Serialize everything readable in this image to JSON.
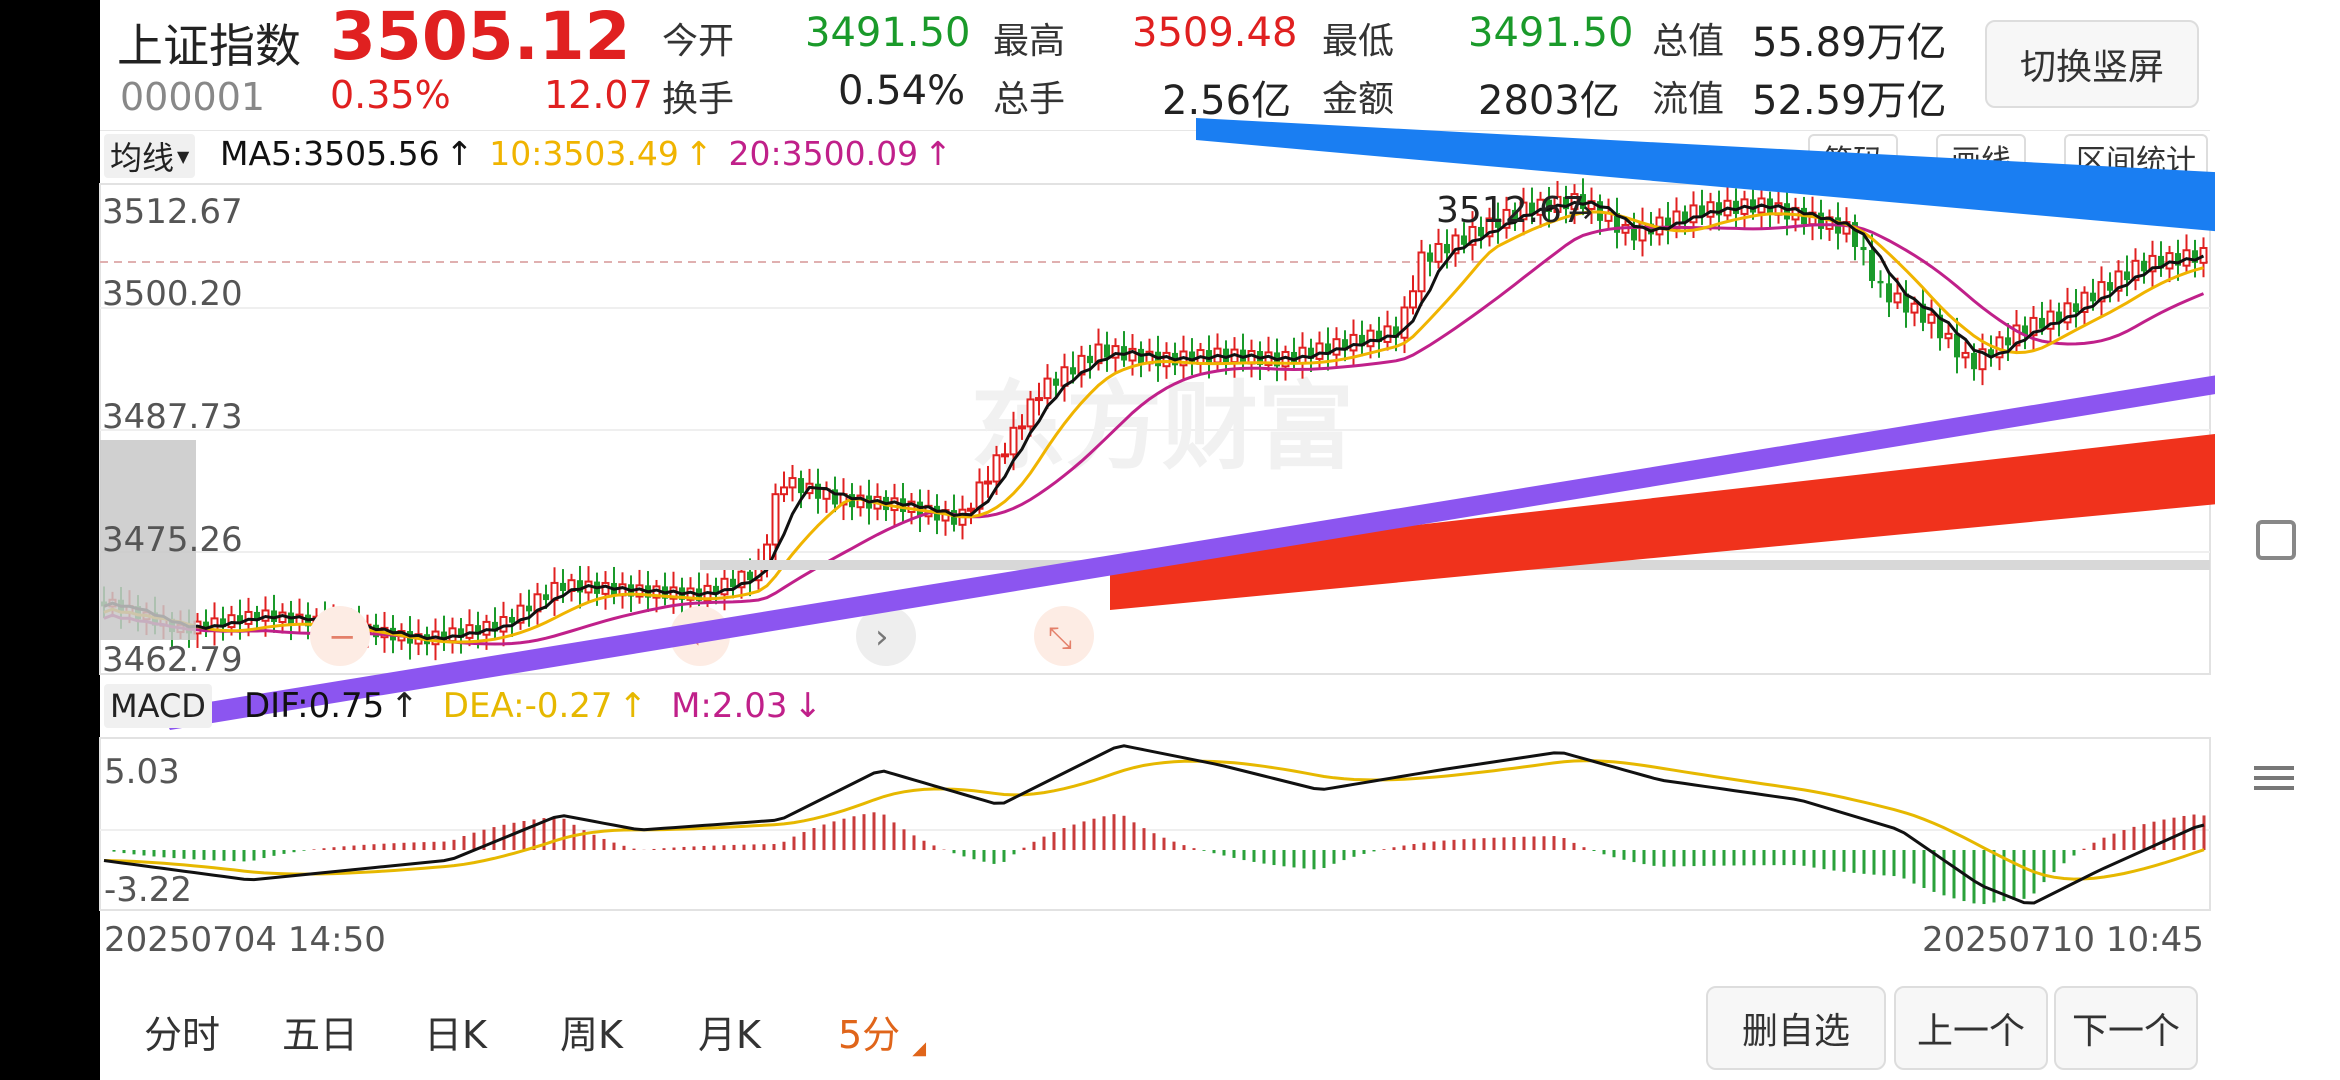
{
  "header": {
    "name": "上证指数",
    "price": "3505.12",
    "code": "000001",
    "change_pct": "0.35%",
    "change_abs": "12.07",
    "stats": [
      {
        "label": "今开",
        "value": "3491.50",
        "color": "green"
      },
      {
        "label": "最高",
        "value": "3509.48",
        "color": "red"
      },
      {
        "label": "最低",
        "value": "3491.50",
        "color": "green"
      },
      {
        "label": "总值",
        "value": "55.89万亿",
        "color": "dark"
      },
      {
        "label": "换手",
        "value": "0.54%",
        "color": "dark"
      },
      {
        "label": "总手",
        "value": "2.56亿",
        "color": "dark"
      },
      {
        "label": "金额",
        "value": "2803亿",
        "color": "dark"
      },
      {
        "label": "流值",
        "value": "52.59万亿",
        "color": "dark"
      }
    ],
    "switch_label": "切换竖屏"
  },
  "ma_bar": {
    "selector": "均线",
    "ma5": "MA5:3505.56",
    "ma10": "10:3503.49",
    "ma20": "20:3500.09",
    "buttons": [
      "筹码",
      "画线",
      "区间统计"
    ]
  },
  "price_axis": [
    "3512.67",
    "3500.20",
    "3487.73",
    "3475.26",
    "3462.79"
  ],
  "peak_label": "3512.67",
  "watermark": "东方财富",
  "macd_bar": {
    "name": "MACD",
    "dif": "DIF:0.75",
    "dea": "DEA:-0.27",
    "m": "M:2.03"
  },
  "macd_axis": [
    "5.03",
    "-3.22"
  ],
  "time_axis": {
    "start": "20250704 14:50",
    "end": "20250710 10:45"
  },
  "tabs": [
    "分时",
    "五日",
    "日K",
    "周K",
    "月K",
    "5分"
  ],
  "actions": [
    "删自选",
    "上一个",
    "下一个"
  ],
  "colors": {
    "up": "#e02020",
    "down": "#1a9a2a",
    "ma5": "#111111",
    "ma10": "#f0b400",
    "ma20": "#c0208a",
    "blue_arrow": "#1a7ef2",
    "red_arrow": "#f0321c",
    "purple_line": "#8c55f0"
  }
}
